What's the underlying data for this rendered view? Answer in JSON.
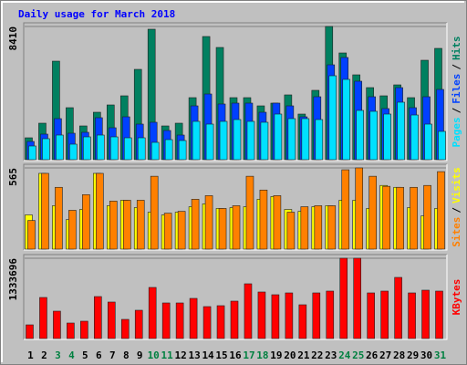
{
  "chart_data": {
    "type": "bar",
    "title": "Daily usage for March 2018",
    "categories": [
      "1",
      "2",
      "3",
      "4",
      "5",
      "6",
      "7",
      "8",
      "9",
      "10",
      "11",
      "12",
      "13",
      "14",
      "15",
      "16",
      "17",
      "18",
      "19",
      "20",
      "21",
      "22",
      "23",
      "24",
      "25",
      "26",
      "27",
      "28",
      "29",
      "30",
      "31"
    ],
    "category_colors": [
      "#000000",
      "#000000",
      "#008040",
      "#008040",
      "#000000",
      "#000000",
      "#000000",
      "#000000",
      "#000000",
      "#008040",
      "#008040",
      "#000000",
      "#000000",
      "#000000",
      "#000000",
      "#000000",
      "#008040",
      "#008040",
      "#000000",
      "#000000",
      "#000000",
      "#000000",
      "#000000",
      "#008040",
      "#008040",
      "#000000",
      "#000000",
      "#000000",
      "#000000",
      "#000000",
      "#008040"
    ],
    "legend_separator": "/",
    "panels": [
      {
        "ylim": [
          0,
          8410
        ],
        "yticks": [
          8410
        ],
        "grid": true,
        "series": [
          {
            "name": "Hits",
            "color": "#008060",
            "values": [
              1382,
              2304,
              6220,
              3283,
              2131,
              2995,
              3456,
              4032,
              5702,
              8237,
              2131,
              2304,
              3917,
              7776,
              7085,
              3917,
              3917,
              3398,
              3571,
              4090,
              2880,
              4378,
              8410,
              6739,
              5357,
              4550,
              4032,
              4723,
              3917,
              6278,
              7027
            ]
          },
          {
            "name": "Files",
            "color": "#0040ff",
            "values": [
              1152,
              1613,
              2592,
              1670,
              1728,
              2650,
              2016,
              2707,
              2246,
              2362,
              1843,
              1555,
              3398,
              4147,
              3514,
              3571,
              3571,
              2995,
              3571,
              3398,
              2707,
              3974,
              5990,
              6451,
              4954,
              3974,
              3226,
              4550,
              3283,
              3974,
              4435
            ]
          },
          {
            "name": "Pages",
            "color": "#00e0ff",
            "values": [
              864,
              1325,
              1555,
              979,
              1440,
              1555,
              1440,
              1382,
              1382,
              1094,
              1267,
              1210,
              2419,
              2246,
              2419,
              2534,
              2419,
              2362,
              2880,
              2592,
              2592,
              2534,
              5299,
              5069,
              3110,
              3053,
              2880,
              3629,
              2822,
              2246,
              1786
            ]
          }
        ]
      },
      {
        "ylim": [
          0,
          565
        ],
        "yticks": [
          565
        ],
        "grid": true,
        "series": [
          {
            "name": "Visits",
            "color": "#ffff00",
            "values": [
              238,
              527,
              302,
              205,
              276,
              527,
              302,
              340,
              289,
              257,
              238,
              257,
              295,
              315,
              283,
              289,
              295,
              347,
              366,
              276,
              263,
              295,
              302,
              340,
              340,
              283,
              443,
              430,
              289,
              231,
              283
            ]
          },
          {
            "name": "Sites",
            "color": "#ff8000",
            "values": [
              199,
              527,
              430,
              270,
              379,
              527,
              334,
              340,
              340,
              507,
              250,
              263,
              347,
              372,
              283,
              302,
              507,
              411,
              372,
              257,
              295,
              302,
              302,
              552,
              565,
              507,
              437,
              430,
              430,
              443,
              539
            ]
          }
        ]
      },
      {
        "ylim": [
          0,
          1333696
        ],
        "yticks": [
          1333696
        ],
        "grid": true,
        "series": [
          {
            "name": "KBytes",
            "color": "#ff0000",
            "values": [
              227340,
              682020,
              454680,
              257652,
              287964,
              697176,
              606240,
              318276,
              469836,
              848736,
              591084,
              591084,
              666864,
              530460,
              545616,
              621396,
              909360,
              772956,
              727488,
              757800,
              560772,
              757800,
              788112,
              1333696,
              1333696,
              757800,
              788112,
              1015452,
              757800,
              803268,
              788112
            ]
          }
        ]
      }
    ]
  }
}
